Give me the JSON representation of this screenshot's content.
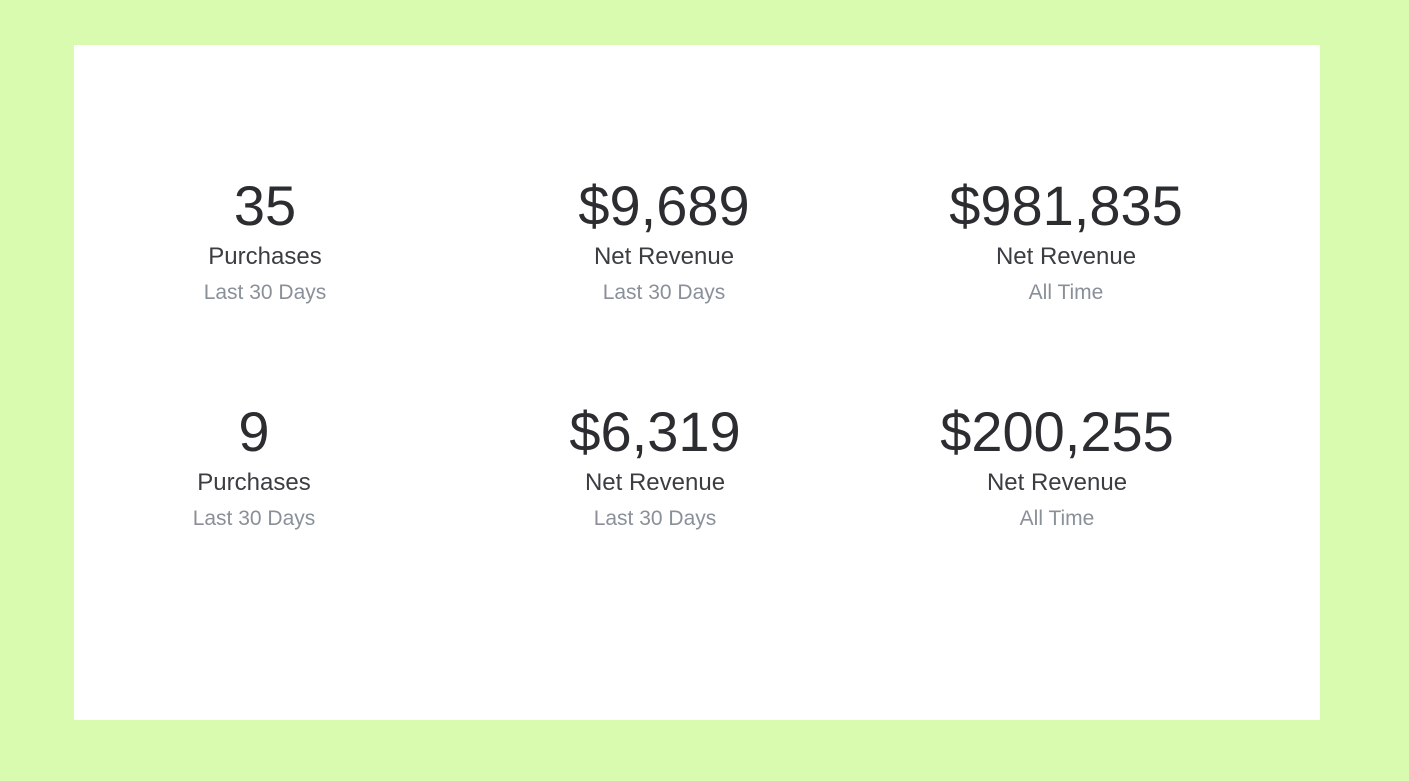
{
  "stats": [
    {
      "value": "35",
      "label": "Purchases",
      "period": "Last 30 Days"
    },
    {
      "value": "$9,689",
      "label": "Net Revenue",
      "period": "Last 30 Days"
    },
    {
      "value": "$981,835",
      "label": "Net Revenue",
      "period": "All Time"
    },
    {
      "value": "9",
      "label": "Purchases",
      "period": "Last 30 Days"
    },
    {
      "value": "$6,319",
      "label": "Net Revenue",
      "period": "Last 30 Days"
    },
    {
      "value": "$200,255",
      "label": "Net Revenue",
      "period": "All Time"
    }
  ]
}
